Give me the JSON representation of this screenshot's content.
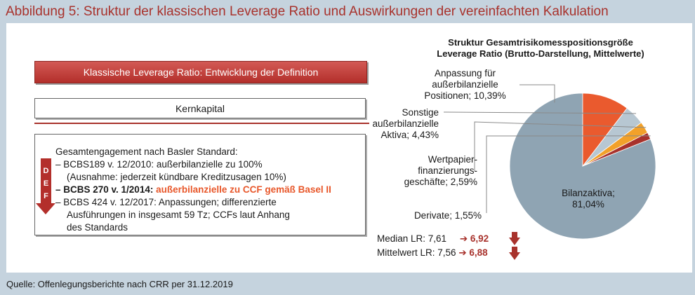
{
  "title": "Abbildung 5: Struktur der klassischen Leverage Ratio und Auswirkungen der vereinfachten Kalkulation",
  "source": "Quelle: Offenlegungsberichte nach CRR per 31.12.2019",
  "left": {
    "header_box": "Klassische Leverage Ratio: Entwicklung der Definition",
    "kernkapital": "Kernkapital",
    "arrow_letters": [
      "D",
      "E",
      "F"
    ],
    "lines": {
      "l1": "Gesamtengagement nach Basler Standard:",
      "l2": "– BCBS189 v. 12/2010: außerbilanzielle zu 100%",
      "l3": "(Ausnahme: jederzeit kündbare Kreditzusagen 10%)",
      "l4_bold": "– BCBS 270 v. 1/2014: ",
      "l4_accent": "außerbilanzielle zu CCF gemäß Basel II",
      "l5": "– BCBS 424 v. 12/2017: Anpassungen; differenzierte",
      "l6": "Ausführungen in insgesamt 59 Tz; CCFs laut Anhang",
      "l7": "des Standards"
    }
  },
  "stats": {
    "median": {
      "label": "Median LR: 7,61",
      "arrow": "➔",
      "new": "6,92"
    },
    "mean": {
      "label": "Mittelwert LR: 7,56",
      "arrow": "➔",
      "new": "6,88"
    }
  },
  "colors": {
    "title": "#a8322c",
    "bilanz": "#8fa4b3",
    "anpassung": "#ea5a2e",
    "sonstige": "#b7c7d2",
    "wertpapier": "#f2a12a",
    "derivate": "#a8322c"
  },
  "chart_data": {
    "type": "pie",
    "title": "Struktur Gesamtrisikomesspositionsgröße",
    "subtitle": "Leverage Ratio (Brutto-Darstellung, Mittelwerte)",
    "slices": [
      {
        "name": "Bilanzaktiva",
        "value": 81.04,
        "label": [
          "Bilanzaktiva;",
          "81,04%"
        ],
        "color": "#8fa4b3"
      },
      {
        "name": "Derivate",
        "value": 1.55,
        "label": [
          "Derivate; 1,55%"
        ],
        "color": "#a8322c"
      },
      {
        "name": "Wertpapierfinanzierungsgeschäfte",
        "value": 2.59,
        "label": [
          "Wertpapier-",
          "finanzierungs-",
          "geschäfte; 2,59%"
        ],
        "color": "#f2a12a"
      },
      {
        "name": "Sonstige außerbilanzielle Aktiva",
        "value": 4.43,
        "label": [
          "Sonstige",
          "außerbilanzielle",
          "Aktiva; 4,43%"
        ],
        "color": "#b7c7d2"
      },
      {
        "name": "Anpassung für außerbilanzielle Positionen",
        "value": 10.39,
        "label": [
          "Anpassung für",
          "außerbilanzielle",
          "Positionen; 10,39%"
        ],
        "color": "#ea5a2e"
      }
    ]
  }
}
